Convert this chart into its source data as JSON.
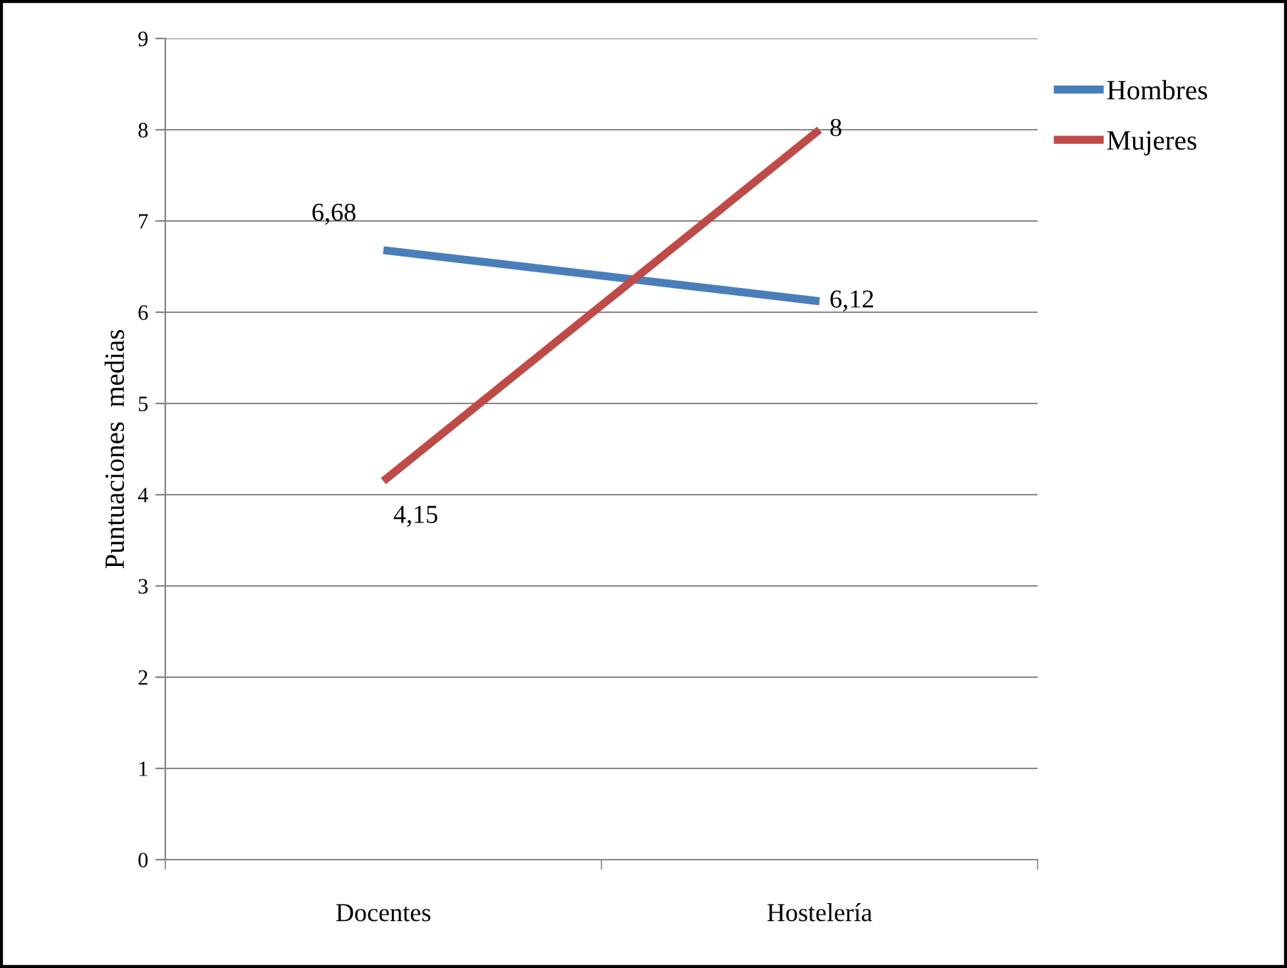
{
  "chart_data": {
    "type": "line",
    "ylabel": "Puntuaciones  medias",
    "categories": [
      "Docentes",
      "Hostelería"
    ],
    "series": [
      {
        "name": "Hombres",
        "color": "#4a7ebb",
        "values": [
          6.68,
          6.12
        ],
        "value_labels": [
          "6,68",
          "6,12"
        ]
      },
      {
        "name": "Mujeres",
        "color": "#be4b48",
        "values": [
          4.15,
          8
        ],
        "value_labels": [
          "4,15",
          "8"
        ]
      }
    ],
    "ylim": [
      0,
      9
    ],
    "yticks": [
      0,
      1,
      2,
      3,
      4,
      5,
      6,
      7,
      8,
      9
    ],
    "grid": "y",
    "legend": "top right",
    "marker": "none",
    "line_style": "solid"
  }
}
